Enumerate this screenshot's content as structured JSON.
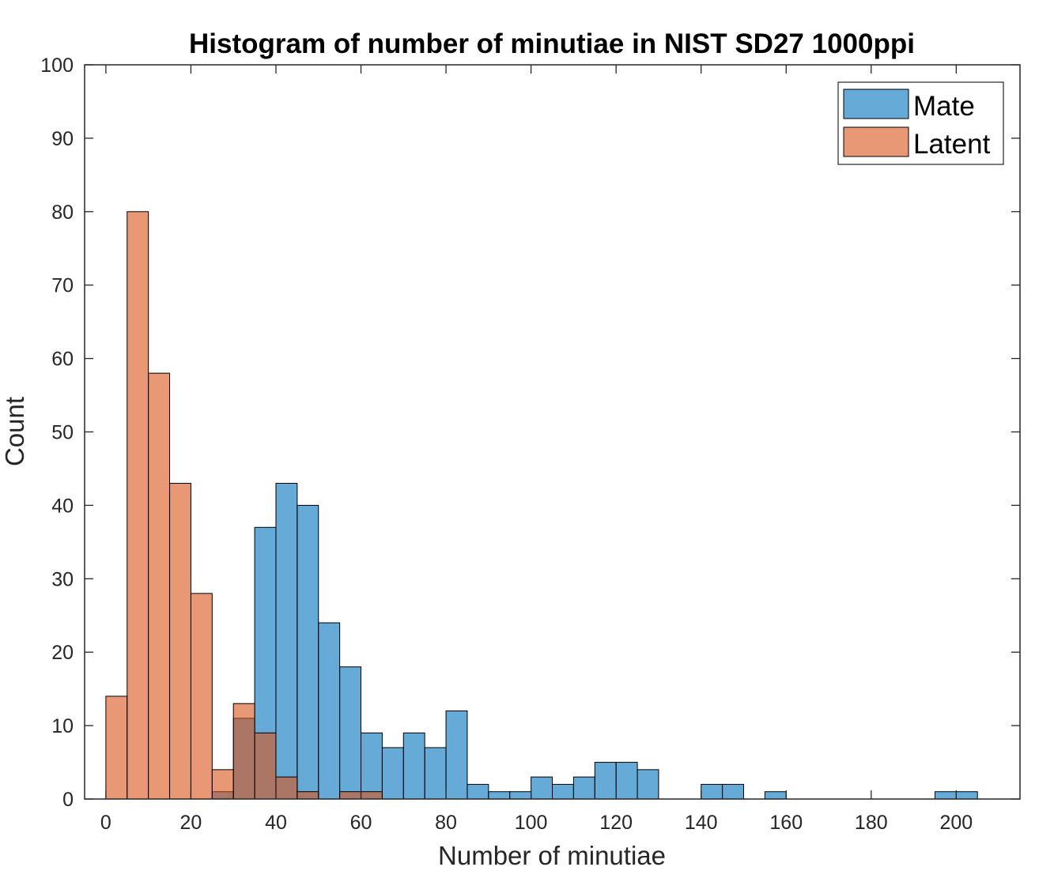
{
  "chart_data": {
    "type": "bar",
    "title": "Histogram of number of minutiae in NIST SD27 1000ppi",
    "xlabel": "Number of minutiae",
    "ylabel": "Count",
    "xlim": [
      -5,
      215
    ],
    "ylim": [
      0,
      100
    ],
    "x_ticks": [
      0,
      20,
      40,
      60,
      80,
      100,
      120,
      140,
      160,
      180,
      200
    ],
    "y_ticks": [
      0,
      10,
      20,
      30,
      40,
      50,
      60,
      70,
      80,
      90,
      100
    ],
    "bin_width": 5,
    "colors": {
      "mate": "#0072BD",
      "latent": "#D95319",
      "edge": "#000000"
    },
    "legend": {
      "position": "top-right"
    },
    "series": [
      {
        "name": "Mate",
        "key": "mate",
        "bins": [
          {
            "start": 25,
            "count": 1
          },
          {
            "start": 30,
            "count": 11
          },
          {
            "start": 35,
            "count": 37
          },
          {
            "start": 40,
            "count": 43
          },
          {
            "start": 45,
            "count": 40
          },
          {
            "start": 50,
            "count": 24
          },
          {
            "start": 55,
            "count": 18
          },
          {
            "start": 60,
            "count": 9
          },
          {
            "start": 65,
            "count": 7
          },
          {
            "start": 70,
            "count": 9
          },
          {
            "start": 75,
            "count": 7
          },
          {
            "start": 80,
            "count": 12
          },
          {
            "start": 85,
            "count": 2
          },
          {
            "start": 90,
            "count": 1
          },
          {
            "start": 95,
            "count": 1
          },
          {
            "start": 100,
            "count": 3
          },
          {
            "start": 105,
            "count": 2
          },
          {
            "start": 110,
            "count": 3
          },
          {
            "start": 115,
            "count": 5
          },
          {
            "start": 120,
            "count": 5
          },
          {
            "start": 125,
            "count": 4
          },
          {
            "start": 130,
            "count": 0
          },
          {
            "start": 135,
            "count": 0
          },
          {
            "start": 140,
            "count": 2
          },
          {
            "start": 145,
            "count": 2
          },
          {
            "start": 150,
            "count": 0
          },
          {
            "start": 155,
            "count": 1
          },
          {
            "start": 160,
            "count": 0
          },
          {
            "start": 165,
            "count": 0
          },
          {
            "start": 170,
            "count": 0
          },
          {
            "start": 175,
            "count": 0
          },
          {
            "start": 180,
            "count": 0
          },
          {
            "start": 185,
            "count": 0
          },
          {
            "start": 190,
            "count": 0
          },
          {
            "start": 195,
            "count": 1
          },
          {
            "start": 200,
            "count": 1
          }
        ]
      },
      {
        "name": "Latent",
        "key": "latent",
        "bins": [
          {
            "start": 0,
            "count": 14
          },
          {
            "start": 5,
            "count": 80
          },
          {
            "start": 10,
            "count": 58
          },
          {
            "start": 15,
            "count": 43
          },
          {
            "start": 20,
            "count": 28
          },
          {
            "start": 25,
            "count": 4
          },
          {
            "start": 30,
            "count": 13
          },
          {
            "start": 35,
            "count": 9
          },
          {
            "start": 40,
            "count": 3
          },
          {
            "start": 45,
            "count": 1
          },
          {
            "start": 50,
            "count": 0
          },
          {
            "start": 55,
            "count": 1
          },
          {
            "start": 60,
            "count": 1
          }
        ]
      }
    ]
  }
}
